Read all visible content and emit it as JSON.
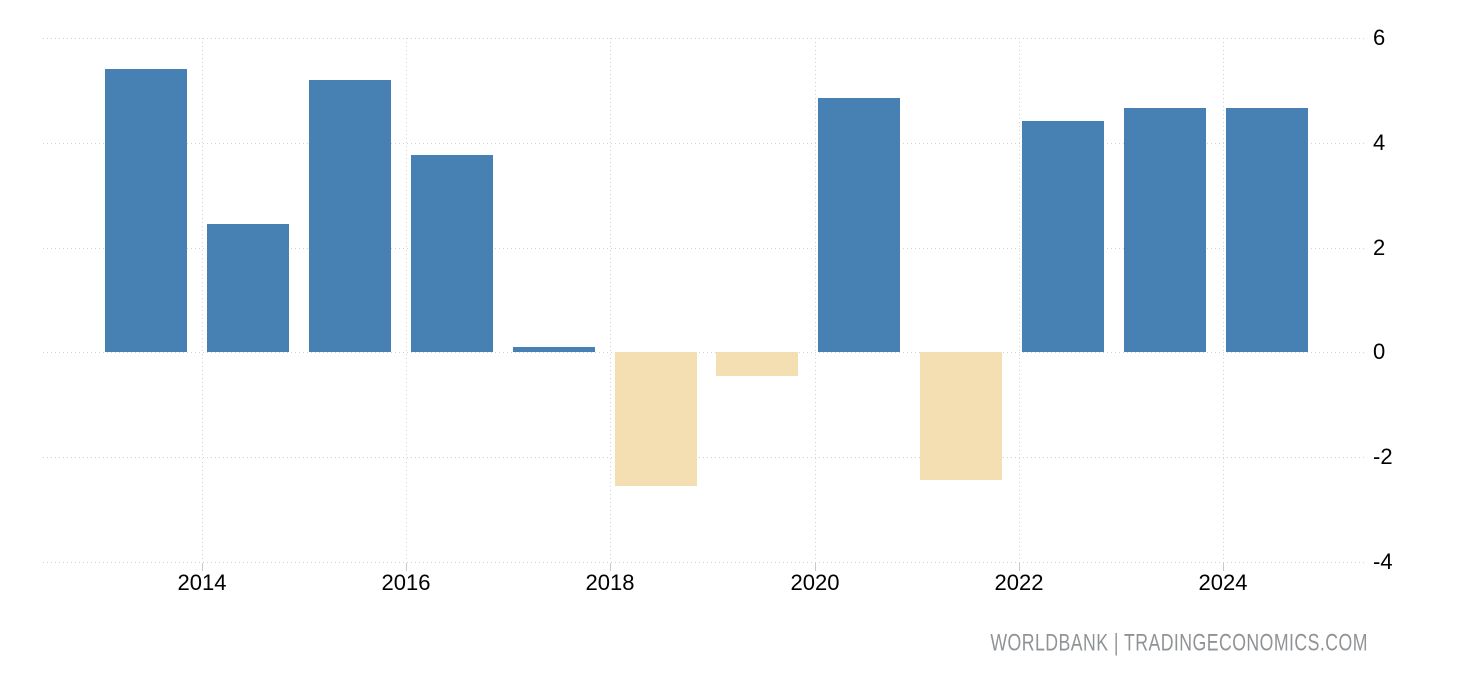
{
  "chart_data": {
    "type": "bar",
    "title": "",
    "xlabel": "",
    "ylabel": "",
    "categories": [
      2013,
      2014,
      2015,
      2016,
      2017,
      2018,
      2019,
      2020,
      2021,
      2022,
      2023,
      2024
    ],
    "values": [
      5.4,
      2.45,
      5.2,
      3.75,
      0.1,
      -2.55,
      -0.45,
      4.85,
      -2.45,
      4.4,
      4.65,
      4.65
    ],
    "ylim": [
      -4,
      6
    ],
    "yticks": [
      6,
      4,
      2,
      0,
      -2,
      -4
    ],
    "xticks": [
      2014,
      2016,
      2018,
      2020,
      2022,
      2024
    ],
    "legend": "none",
    "grid": "dotted",
    "colors": {
      "positive_bar": "#4781B4",
      "negative_bar": "#F4DFB3",
      "gridline": "#D2D2D2",
      "tick": "#C9C9C9",
      "axis_label": "#000000",
      "background": "#FFFFFF"
    }
  },
  "watermark": {
    "text": "WORLDBANK | TRADINGECONOMICS.COM",
    "color": "#8F9396"
  }
}
